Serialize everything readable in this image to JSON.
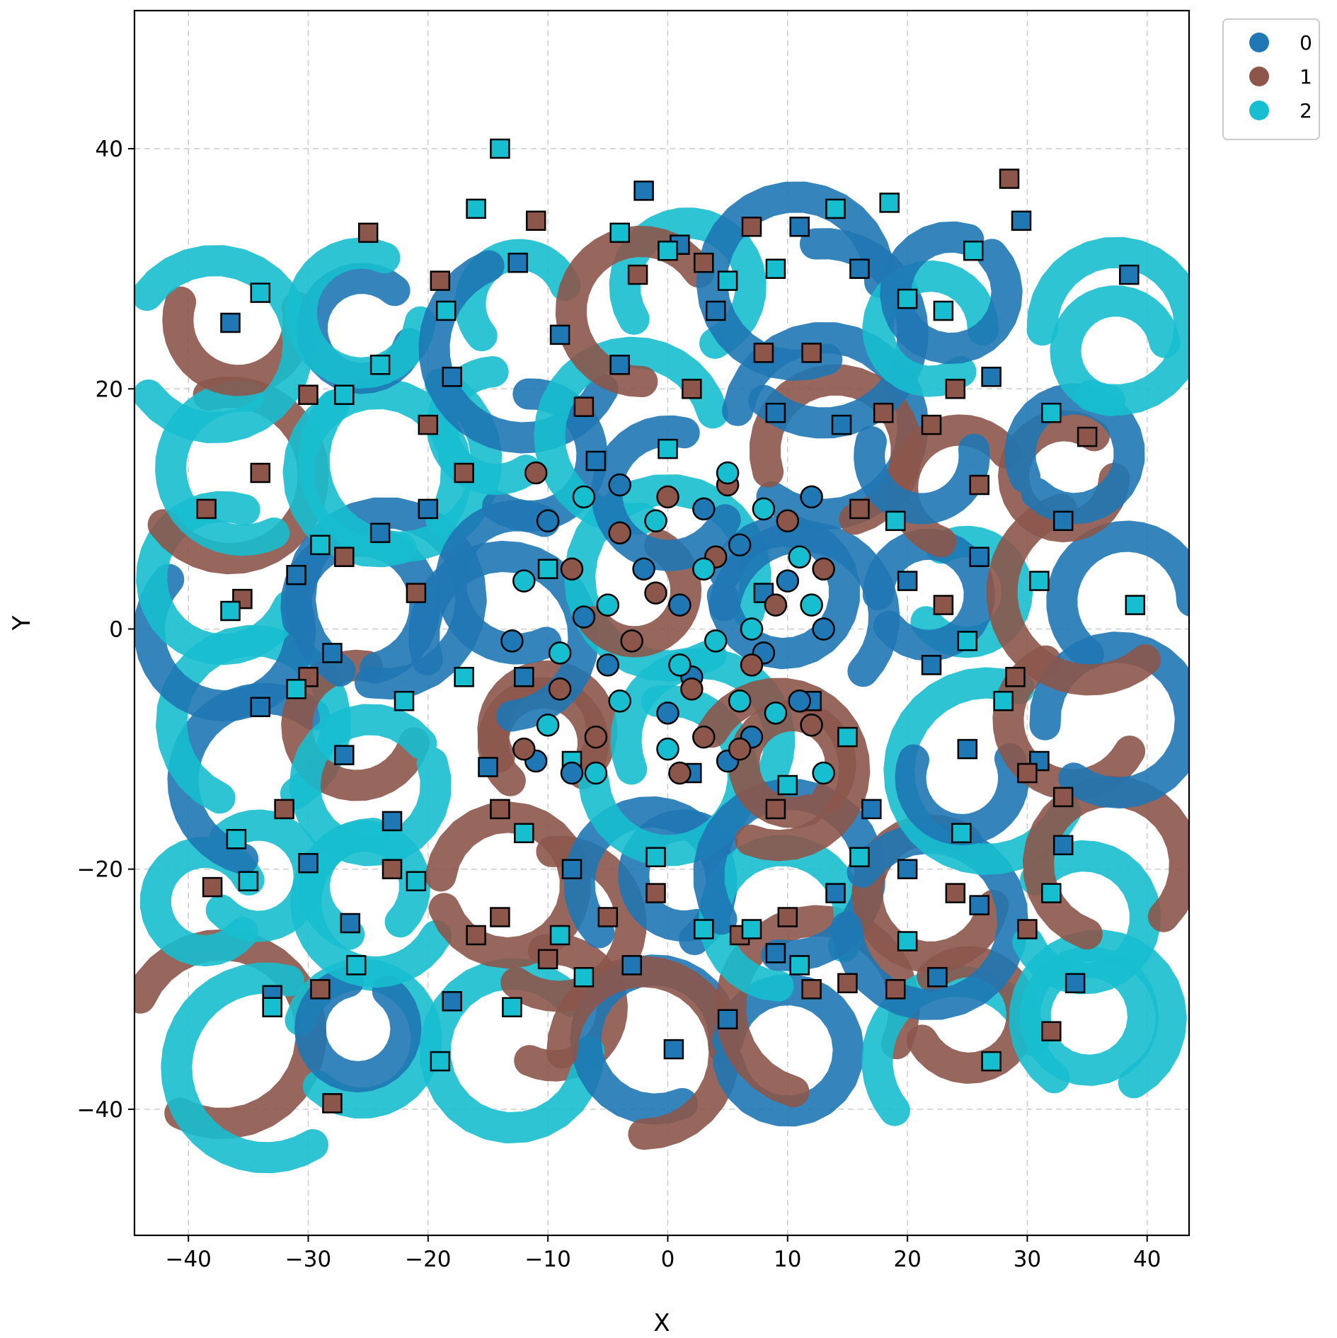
{
  "chart_data": {
    "type": "scatter",
    "title": "",
    "xlabel": "X",
    "ylabel": "Y",
    "xlim": [
      -44.5,
      43.5
    ],
    "ylim": [
      -50.5,
      51.5
    ],
    "xticks": [
      -40,
      -30,
      -20,
      -10,
      0,
      10,
      20,
      30,
      40
    ],
    "yticks": [
      -40,
      -20,
      0,
      20,
      40
    ],
    "xtick_labels": [
      "−40",
      "−30",
      "−20",
      "−10",
      "0",
      "10",
      "20",
      "30",
      "40"
    ],
    "ytick_labels": [
      "−40",
      "−20",
      "0",
      "20",
      "40"
    ],
    "grid": true,
    "legend_position": "upper right outside",
    "description_markers": {
      "trail": "translucent spiral trails of arrow-shaped markers",
      "square": "square markers with black edge scattered across the field",
      "circle": "circle markers with black edge concentrated in the center"
    },
    "series": [
      {
        "name": "0",
        "color": "#1f77b4",
        "square_points": [
          [
            -36.5,
            25.5
          ],
          [
            -33,
            -30.5
          ],
          [
            -30,
            -19.5
          ],
          [
            -26.5,
            -24.5
          ],
          [
            -20,
            10
          ],
          [
            -18,
            21
          ],
          [
            -15,
            -11.5
          ],
          [
            -12.5,
            30.5
          ],
          [
            -9,
            24.5
          ],
          [
            -4,
            22
          ],
          [
            -2,
            36.5
          ],
          [
            1,
            32
          ],
          [
            4,
            26.5
          ],
          [
            9,
            18
          ],
          [
            11,
            33.5
          ],
          [
            14.5,
            17
          ],
          [
            16,
            30
          ],
          [
            20,
            4
          ],
          [
            22,
            -3
          ],
          [
            25,
            -10
          ],
          [
            27,
            21
          ],
          [
            29.5,
            34
          ],
          [
            31,
            -11
          ],
          [
            34,
            -29.5
          ],
          [
            38.5,
            29.5
          ],
          [
            -34,
            -6.5
          ],
          [
            -27,
            -10.5
          ],
          [
            -23,
            -16
          ],
          [
            -18,
            -31
          ],
          [
            -8,
            -20
          ],
          [
            -3,
            -28
          ],
          [
            0.5,
            -35
          ],
          [
            5,
            -32.5
          ],
          [
            9,
            -27
          ],
          [
            14,
            -22
          ],
          [
            20,
            -20
          ],
          [
            22.5,
            -29
          ],
          [
            26,
            -23
          ],
          [
            33,
            -18
          ],
          [
            -31,
            4.5
          ],
          [
            -28,
            -2
          ],
          [
            -24,
            8
          ],
          [
            -12,
            -4
          ],
          [
            8,
            3
          ],
          [
            12,
            -6
          ],
          [
            26,
            6
          ],
          [
            33,
            9
          ],
          [
            -6,
            14
          ],
          [
            2,
            -12
          ],
          [
            17,
            -15
          ]
        ],
        "circle_points": [
          [
            -10,
            9
          ],
          [
            -7,
            1
          ],
          [
            -5,
            -3
          ],
          [
            -2,
            5
          ],
          [
            0,
            -7
          ],
          [
            3,
            10
          ],
          [
            5,
            -11
          ],
          [
            8,
            -2
          ],
          [
            10,
            4
          ],
          [
            12,
            11
          ],
          [
            -13,
            -1
          ],
          [
            -11,
            -11
          ],
          [
            -4,
            12
          ],
          [
            1,
            2
          ],
          [
            6,
            7
          ],
          [
            11,
            -6
          ],
          [
            -8,
            -12
          ],
          [
            2,
            -4
          ],
          [
            7,
            -9
          ],
          [
            13,
            0
          ]
        ]
      },
      {
        "name": "1",
        "color": "#8c564b",
        "square_points": [
          [
            -38.5,
            10
          ],
          [
            -38,
            -21.5
          ],
          [
            -35.5,
            2.5
          ],
          [
            -32,
            -15
          ],
          [
            -30,
            19.5
          ],
          [
            -28,
            -39.5
          ],
          [
            -25,
            33
          ],
          [
            -20,
            17
          ],
          [
            -19,
            29
          ],
          [
            -14,
            -24
          ],
          [
            -11,
            34
          ],
          [
            -7,
            18.5
          ],
          [
            -2.5,
            29.5
          ],
          [
            3,
            30.5
          ],
          [
            7,
            33.5
          ],
          [
            10,
            -24
          ],
          [
            12,
            23
          ],
          [
            15,
            -29.5
          ],
          [
            18,
            18
          ],
          [
            22,
            17
          ],
          [
            24,
            20
          ],
          [
            28.5,
            37.5
          ],
          [
            30,
            -12
          ],
          [
            32,
            -33.5
          ],
          [
            35,
            16
          ],
          [
            -29,
            -30
          ],
          [
            -23,
            -20
          ],
          [
            -16,
            -25.5
          ],
          [
            -10,
            -27.5
          ],
          [
            -5,
            -24
          ],
          [
            -1,
            -22
          ],
          [
            6,
            -25.5
          ],
          [
            12,
            -30
          ],
          [
            19,
            -30
          ],
          [
            24,
            -22
          ],
          [
            30,
            -25
          ],
          [
            33,
            -14
          ],
          [
            -34,
            13
          ],
          [
            -27,
            6
          ],
          [
            -21,
            3
          ],
          [
            -14,
            -15
          ],
          [
            9,
            -15
          ],
          [
            16,
            10
          ],
          [
            23,
            2
          ],
          [
            29,
            -4
          ],
          [
            -30,
            -4
          ],
          [
            2,
            20
          ],
          [
            8,
            23
          ],
          [
            -17,
            13
          ],
          [
            26,
            12
          ]
        ],
        "circle_points": [
          [
            -11,
            13
          ],
          [
            -8,
            5
          ],
          [
            -6,
            -9
          ],
          [
            -3,
            -1
          ],
          [
            0,
            11
          ],
          [
            2,
            -5
          ],
          [
            4,
            6
          ],
          [
            6,
            -10
          ],
          [
            9,
            2
          ],
          [
            12,
            -8
          ],
          [
            -12,
            -10
          ],
          [
            -9,
            -5
          ],
          [
            -4,
            8
          ],
          [
            1,
            -12
          ],
          [
            5,
            12
          ],
          [
            7,
            -3
          ],
          [
            10,
            9
          ],
          [
            13,
            5
          ],
          [
            -1,
            3
          ],
          [
            3,
            -9
          ]
        ]
      },
      {
        "name": "2",
        "color": "#17becf",
        "square_points": [
          [
            -14,
            40
          ],
          [
            -34,
            28
          ],
          [
            -36.5,
            1.5
          ],
          [
            -36,
            -17.5
          ],
          [
            -35,
            -21
          ],
          [
            -33,
            -31.5
          ],
          [
            -27,
            19.5
          ],
          [
            -24,
            22
          ],
          [
            -18.5,
            26.5
          ],
          [
            -16,
            35
          ],
          [
            -13,
            -31.5
          ],
          [
            -9,
            -25.5
          ],
          [
            -4,
            33
          ],
          [
            0,
            31.5
          ],
          [
            5,
            29
          ],
          [
            9,
            30
          ],
          [
            14,
            35
          ],
          [
            18.5,
            35.5
          ],
          [
            20,
            27.5
          ],
          [
            23,
            26.5
          ],
          [
            25.5,
            31.5
          ],
          [
            28,
            -6
          ],
          [
            32,
            18
          ],
          [
            39,
            2
          ],
          [
            -31,
            -5
          ],
          [
            -26,
            -28
          ],
          [
            -21,
            -21
          ],
          [
            -19,
            -36
          ],
          [
            -12,
            -17
          ],
          [
            -7,
            -29
          ],
          [
            -1,
            -19
          ],
          [
            3,
            -25
          ],
          [
            7,
            -25
          ],
          [
            11,
            -28
          ],
          [
            16,
            -19
          ],
          [
            20,
            -26
          ],
          [
            24.5,
            -17
          ],
          [
            27,
            -36
          ],
          [
            32,
            -22
          ],
          [
            -29,
            7
          ],
          [
            -22,
            -6
          ],
          [
            -17,
            -4
          ],
          [
            -10,
            5
          ],
          [
            15,
            -9
          ],
          [
            19,
            9
          ],
          [
            25,
            -1
          ],
          [
            31,
            4
          ],
          [
            -8,
            -11
          ],
          [
            0,
            15
          ],
          [
            10,
            -13
          ]
        ],
        "circle_points": [
          [
            -12,
            4
          ],
          [
            -9,
            -2
          ],
          [
            -7,
            11
          ],
          [
            -4,
            -6
          ],
          [
            -1,
            9
          ],
          [
            1,
            -3
          ],
          [
            3,
            5
          ],
          [
            5,
            13
          ],
          [
            7,
            0
          ],
          [
            9,
            -7
          ],
          [
            11,
            6
          ],
          [
            13,
            -12
          ],
          [
            -10,
            -8
          ],
          [
            -5,
            2
          ],
          [
            0,
            -10
          ],
          [
            4,
            -1
          ],
          [
            8,
            10
          ],
          [
            12,
            2
          ],
          [
            -6,
            -12
          ],
          [
            6,
            -6
          ]
        ]
      }
    ]
  }
}
